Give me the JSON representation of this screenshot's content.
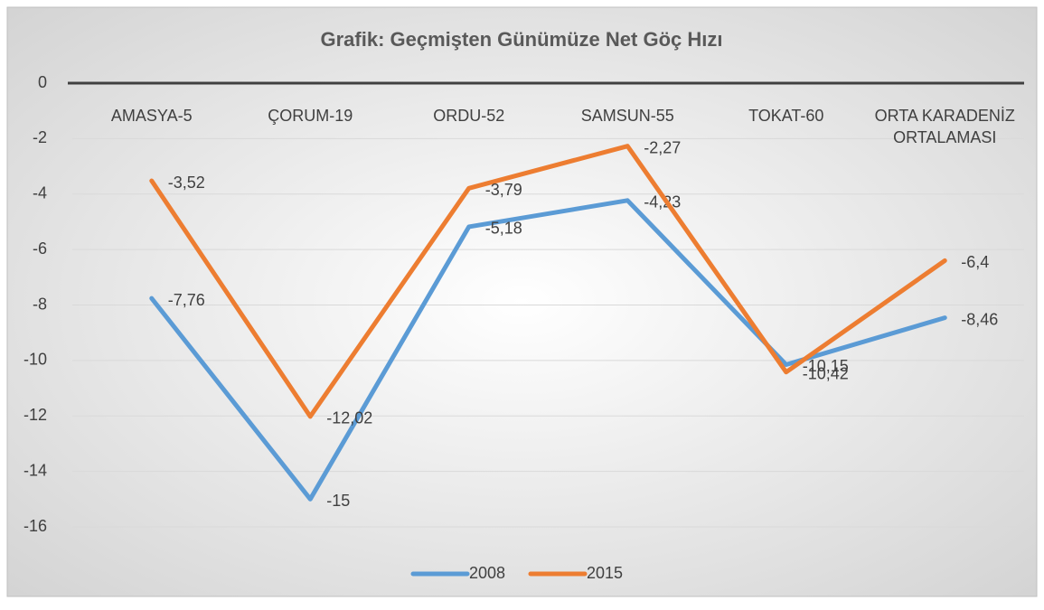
{
  "chart_data": {
    "type": "line",
    "title": "Grafik: Geçmişten Günümüze Net Göç Hızı",
    "categories": [
      "AMASYA-5",
      "ÇORUM-19",
      "ORDU-52",
      "SAMSUN-55",
      "TOKAT-60",
      "ORTA KARADENİZ ORTALAMASI"
    ],
    "series": [
      {
        "name": "2008",
        "color": "#5b9bd5",
        "values": [
          -7.76,
          -15,
          -5.18,
          -4.23,
          -10.15,
          -8.46
        ],
        "value_labels": [
          "-7,76",
          "-15",
          "-5,18",
          "-4,23",
          "-10,15",
          "-8,46"
        ]
      },
      {
        "name": "2015",
        "color": "#ed7d31",
        "values": [
          -3.52,
          -12.02,
          -3.79,
          -2.27,
          -10.42,
          -6.4
        ],
        "value_labels": [
          "-3,52",
          "-12,02",
          "-3,79",
          "-2,27",
          "-10,42",
          "-6,4"
        ]
      }
    ],
    "ylim": [
      -16,
      0
    ],
    "yticks": [
      0,
      -2,
      -4,
      -6,
      -8,
      -10,
      -12,
      -14,
      -16
    ],
    "grid": true,
    "legend": "bottom"
  }
}
